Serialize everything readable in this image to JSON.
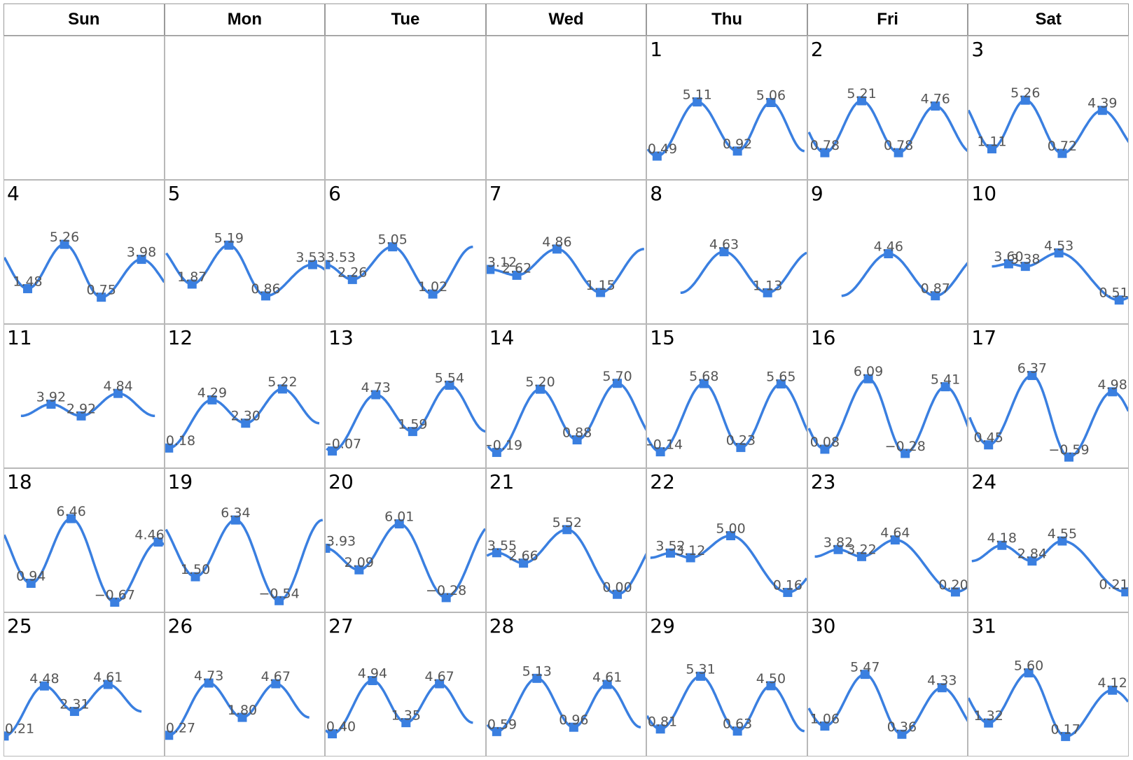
{
  "weekdays": [
    "Sun",
    "Mon",
    "Tue",
    "Wed",
    "Thu",
    "Fri",
    "Sat"
  ],
  "first_weekday_index": 4,
  "colors": {
    "line": "#3a7fe0",
    "marker": "#3a7fe0",
    "label": "#555555",
    "grid": "#b8b8b8"
  },
  "chart_data": {
    "type": "line",
    "description_note": "",
    "ylim": [
      -1.0,
      7.0
    ],
    "xlim": [
      0,
      24
    ],
    "days": [
      {
        "day": 1,
        "points": [
          {
            "x": 1.5,
            "y": 0.49
          },
          {
            "x": 7.5,
            "y": 5.11
          },
          {
            "x": 13.5,
            "y": 0.92
          },
          {
            "x": 18.5,
            "y": 5.06
          }
        ]
      },
      {
        "day": 2,
        "points": [
          {
            "x": 2.5,
            "y": 0.78
          },
          {
            "x": 8.0,
            "y": 5.21
          },
          {
            "x": 13.5,
            "y": 0.78
          },
          {
            "x": 19.0,
            "y": 4.76
          }
        ]
      },
      {
        "day": 3,
        "points": [
          {
            "x": 3.5,
            "y": 1.11
          },
          {
            "x": 8.5,
            "y": 5.26
          },
          {
            "x": 14.0,
            "y": 0.72
          },
          {
            "x": 20.0,
            "y": 4.39
          }
        ]
      },
      {
        "day": 4,
        "points": [
          {
            "x": 3.5,
            "y": 1.48
          },
          {
            "x": 9.0,
            "y": 5.26
          },
          {
            "x": 14.5,
            "y": 0.75
          },
          {
            "x": 20.5,
            "y": 3.98
          }
        ]
      },
      {
        "day": 5,
        "points": [
          {
            "x": 4.0,
            "y": 1.87
          },
          {
            "x": 9.5,
            "y": 5.19
          },
          {
            "x": 15.0,
            "y": 0.86
          },
          {
            "x": 22.0,
            "y": 3.53
          }
        ]
      },
      {
        "day": 6,
        "points": [
          {
            "x": 0.0,
            "y": 3.53
          },
          {
            "x": 4.0,
            "y": 2.26
          },
          {
            "x": 10.0,
            "y": 5.05
          },
          {
            "x": 16.0,
            "y": 1.02
          }
        ]
      },
      {
        "day": 7,
        "points": [
          {
            "x": 0.5,
            "y": 3.12
          },
          {
            "x": 4.5,
            "y": 2.62
          },
          {
            "x": 10.5,
            "y": 4.86
          },
          {
            "x": 17.0,
            "y": 1.15
          }
        ]
      },
      {
        "day": 8,
        "points": [
          {
            "x": 11.5,
            "y": 4.63
          },
          {
            "x": 18.0,
            "y": 1.13
          }
        ]
      },
      {
        "day": 9,
        "points": [
          {
            "x": 12.0,
            "y": 4.46
          },
          {
            "x": 19.0,
            "y": 0.87
          }
        ]
      },
      {
        "day": 10,
        "points": [
          {
            "x": 6.0,
            "y": 3.6
          },
          {
            "x": 8.5,
            "y": 3.38
          },
          {
            "x": 13.5,
            "y": 4.53
          },
          {
            "x": 22.5,
            "y": 0.51
          }
        ]
      },
      {
        "day": 11,
        "points": [
          {
            "x": 7.0,
            "y": 3.92
          },
          {
            "x": 11.5,
            "y": 2.92
          },
          {
            "x": 17.0,
            "y": 4.84
          }
        ]
      },
      {
        "day": 12,
        "points": [
          {
            "x": 0.5,
            "y": 0.18
          },
          {
            "x": 7.0,
            "y": 4.29
          },
          {
            "x": 12.0,
            "y": 2.3
          },
          {
            "x": 17.5,
            "y": 5.22
          }
        ]
      },
      {
        "day": 13,
        "points": [
          {
            "x": 1.0,
            "y": -0.07
          },
          {
            "x": 7.5,
            "y": 4.73
          },
          {
            "x": 13.0,
            "y": 1.59
          },
          {
            "x": 18.5,
            "y": 5.54
          }
        ]
      },
      {
        "day": 14,
        "points": [
          {
            "x": 1.5,
            "y": -0.19
          },
          {
            "x": 8.0,
            "y": 5.2
          },
          {
            "x": 13.5,
            "y": 0.88
          },
          {
            "x": 19.5,
            "y": 5.7
          }
        ]
      },
      {
        "day": 15,
        "points": [
          {
            "x": 2.0,
            "y": -0.14
          },
          {
            "x": 8.5,
            "y": 5.68
          },
          {
            "x": 14.0,
            "y": 0.23
          },
          {
            "x": 20.0,
            "y": 5.65
          }
        ]
      },
      {
        "day": 16,
        "points": [
          {
            "x": 2.5,
            "y": 0.08
          },
          {
            "x": 9.0,
            "y": 6.09
          },
          {
            "x": 14.5,
            "y": -0.28
          },
          {
            "x": 20.5,
            "y": 5.41
          }
        ]
      },
      {
        "day": 17,
        "points": [
          {
            "x": 3.0,
            "y": 0.45
          },
          {
            "x": 9.5,
            "y": 6.37
          },
          {
            "x": 15.0,
            "y": -0.59
          },
          {
            "x": 21.5,
            "y": 4.98
          }
        ]
      },
      {
        "day": 18,
        "points": [
          {
            "x": 4.0,
            "y": 0.94
          },
          {
            "x": 10.0,
            "y": 6.46
          },
          {
            "x": 16.5,
            "y": -0.67
          },
          {
            "x": 23.0,
            "y": 4.46
          }
        ]
      },
      {
        "day": 19,
        "points": [
          {
            "x": 4.5,
            "y": 1.5
          },
          {
            "x": 10.5,
            "y": 6.34
          },
          {
            "x": 17.0,
            "y": -0.54
          }
        ]
      },
      {
        "day": 20,
        "points": [
          {
            "x": 0.0,
            "y": 3.93
          },
          {
            "x": 5.0,
            "y": 2.09
          },
          {
            "x": 11.0,
            "y": 6.01
          },
          {
            "x": 18.0,
            "y": -0.28
          }
        ]
      },
      {
        "day": 21,
        "points": [
          {
            "x": 1.5,
            "y": 3.55
          },
          {
            "x": 5.5,
            "y": 2.66
          },
          {
            "x": 12.0,
            "y": 5.52
          },
          {
            "x": 19.5,
            "y": 0.0
          }
        ]
      },
      {
        "day": 22,
        "points": [
          {
            "x": 3.5,
            "y": 3.52
          },
          {
            "x": 6.5,
            "y": 3.12
          },
          {
            "x": 12.5,
            "y": 5.0
          },
          {
            "x": 21.0,
            "y": 0.16
          }
        ]
      },
      {
        "day": 23,
        "points": [
          {
            "x": 4.5,
            "y": 3.82
          },
          {
            "x": 8.0,
            "y": 3.22
          },
          {
            "x": 13.0,
            "y": 4.64
          },
          {
            "x": 22.0,
            "y": 0.2
          }
        ]
      },
      {
        "day": 24,
        "points": [
          {
            "x": 5.0,
            "y": 4.18
          },
          {
            "x": 9.5,
            "y": 2.84
          },
          {
            "x": 14.0,
            "y": 4.55
          },
          {
            "x": 23.5,
            "y": 0.21
          }
        ]
      },
      {
        "day": 25,
        "points": [
          {
            "x": 0.0,
            "y": 0.21
          },
          {
            "x": 6.0,
            "y": 4.48
          },
          {
            "x": 10.5,
            "y": 2.31
          },
          {
            "x": 15.5,
            "y": 4.61
          }
        ]
      },
      {
        "day": 26,
        "points": [
          {
            "x": 0.5,
            "y": 0.27
          },
          {
            "x": 6.5,
            "y": 4.73
          },
          {
            "x": 11.5,
            "y": 1.8
          },
          {
            "x": 16.5,
            "y": 4.67
          }
        ]
      },
      {
        "day": 27,
        "points": [
          {
            "x": 1.0,
            "y": 0.4
          },
          {
            "x": 7.0,
            "y": 4.94
          },
          {
            "x": 12.0,
            "y": 1.35
          },
          {
            "x": 17.0,
            "y": 4.67
          }
        ]
      },
      {
        "day": 28,
        "points": [
          {
            "x": 1.5,
            "y": 0.59
          },
          {
            "x": 7.5,
            "y": 5.13
          },
          {
            "x": 13.0,
            "y": 0.96
          },
          {
            "x": 18.0,
            "y": 4.61
          }
        ]
      },
      {
        "day": 29,
        "points": [
          {
            "x": 2.0,
            "y": 0.81
          },
          {
            "x": 8.0,
            "y": 5.31
          },
          {
            "x": 13.5,
            "y": 0.63
          },
          {
            "x": 18.5,
            "y": 4.5
          }
        ]
      },
      {
        "day": 30,
        "points": [
          {
            "x": 2.5,
            "y": 1.06
          },
          {
            "x": 8.5,
            "y": 5.47
          },
          {
            "x": 14.0,
            "y": 0.36
          },
          {
            "x": 20.0,
            "y": 4.33
          }
        ]
      },
      {
        "day": 31,
        "points": [
          {
            "x": 3.0,
            "y": 1.32
          },
          {
            "x": 9.0,
            "y": 5.6
          },
          {
            "x": 14.5,
            "y": 0.17
          },
          {
            "x": 21.5,
            "y": 4.12
          }
        ]
      }
    ]
  }
}
